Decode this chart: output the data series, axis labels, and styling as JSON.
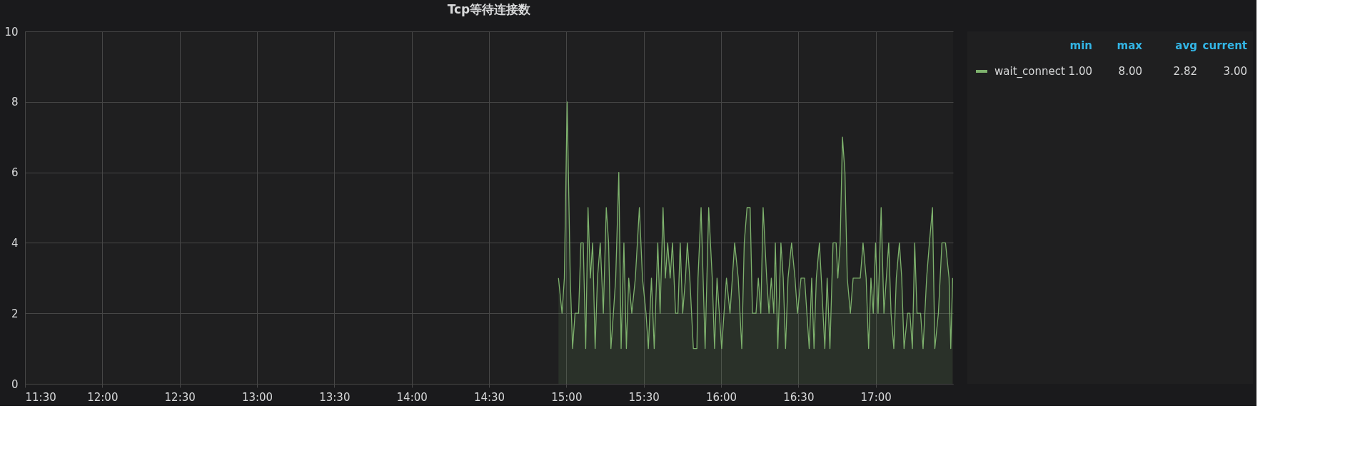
{
  "chart_data": {
    "type": "area",
    "title": "Tcp等待连接数",
    "xlim": [
      11.5,
      17.5
    ],
    "ylim": [
      0,
      10
    ],
    "yticks": [
      0,
      2,
      4,
      6,
      8,
      10
    ],
    "xticks": [
      {
        "value": 11.5,
        "label": "11:30"
      },
      {
        "value": 12,
        "label": "12:00"
      },
      {
        "value": 12.5,
        "label": "12:30"
      },
      {
        "value": 13,
        "label": "13:00"
      },
      {
        "value": 13.5,
        "label": "13:30"
      },
      {
        "value": 14,
        "label": "14:00"
      },
      {
        "value": 14.5,
        "label": "14:30"
      },
      {
        "value": 15,
        "label": "15:00"
      },
      {
        "value": 15.5,
        "label": "15:30"
      },
      {
        "value": 16,
        "label": "16:00"
      },
      {
        "value": 16.5,
        "label": "16:30"
      },
      {
        "value": 17,
        "label": "17:00"
      }
    ],
    "grid": true,
    "legend": "right",
    "marker": "none",
    "line_style": "solid",
    "annotations": [
      "min",
      "max",
      "avg",
      "current",
      "1.00",
      "8.00",
      "2.82",
      "3.00"
    ],
    "series": [
      {
        "name": "wait_connect",
        "color": "#7eb26d",
        "x": [
          14.949,
          14.972,
          14.987,
          15.005,
          15.025,
          15.04,
          15.056,
          15.079,
          15.094,
          15.109,
          15.125,
          15.14,
          15.155,
          15.17,
          15.186,
          15.201,
          15.219,
          15.239,
          15.258,
          15.273,
          15.288,
          15.304,
          15.319,
          15.339,
          15.354,
          15.372,
          15.388,
          15.403,
          15.423,
          15.446,
          15.472,
          15.492,
          15.515,
          15.53,
          15.55,
          15.568,
          15.591,
          15.606,
          15.625,
          15.64,
          15.655,
          15.671,
          15.686,
          15.706,
          15.721,
          15.736,
          15.752,
          15.77,
          15.782,
          15.798,
          15.821,
          15.844,
          15.851,
          15.871,
          15.897,
          15.92,
          15.943,
          15.958,
          15.974,
          15.989,
          16.004,
          16.019,
          16.035,
          16.058,
          16.088,
          16.111,
          16.134,
          16.15,
          16.168,
          16.188,
          16.203,
          16.226,
          16.241,
          16.257,
          16.272,
          16.295,
          16.31,
          16.325,
          16.341,
          16.351,
          16.367,
          16.387,
          16.402,
          16.417,
          16.433,
          16.456,
          16.478,
          16.494,
          16.517,
          16.54,
          16.555,
          16.57,
          16.586,
          16.601,
          16.616,
          16.636,
          16.648,
          16.671,
          16.686,
          16.704,
          16.724,
          16.744,
          16.755,
          16.77,
          16.785,
          16.801,
          16.816,
          16.836,
          16.854,
          16.9,
          16.918,
          16.938,
          16.954,
          16.969,
          16.984,
          16.999,
          17.015,
          17.035,
          17.053,
          17.084,
          17.099,
          17.117,
          17.133,
          17.153,
          17.168,
          17.183,
          17.206,
          17.221,
          17.237,
          17.252,
          17.267,
          17.29,
          17.306,
          17.329,
          17.347,
          17.367,
          17.382,
          17.405,
          17.428,
          17.451,
          17.474,
          17.485,
          17.497
        ],
        "values": [
          3,
          2,
          3,
          8,
          3,
          1,
          2,
          2,
          4,
          4,
          1,
          5,
          3,
          4,
          1,
          3,
          4,
          2,
          5,
          4,
          1,
          2,
          3,
          6,
          1,
          4,
          1,
          3,
          2,
          3,
          5,
          3,
          2,
          1,
          3,
          1,
          4,
          2,
          5,
          3,
          4,
          3,
          4,
          2,
          2,
          4,
          2,
          3,
          4,
          3,
          1,
          1,
          3,
          5,
          1,
          5,
          3,
          1,
          3,
          2,
          1,
          2,
          3,
          2,
          4,
          3,
          1,
          4,
          5,
          5,
          2,
          2,
          3,
          2,
          5,
          3,
          2,
          3,
          2,
          4,
          1,
          4,
          3,
          1,
          3,
          4,
          3,
          2,
          3,
          3,
          2,
          1,
          3,
          1,
          3,
          4,
          3,
          1,
          3,
          1,
          4,
          4,
          3,
          4,
          7,
          6,
          3,
          2,
          3,
          3,
          4,
          3,
          1,
          3,
          2,
          4,
          2,
          5,
          2,
          4,
          2,
          1,
          3,
          4,
          3,
          1,
          2,
          2,
          1,
          4,
          2,
          2,
          1,
          3,
          4,
          5,
          1,
          2,
          4,
          4,
          3,
          1,
          3
        ]
      }
    ]
  }
}
